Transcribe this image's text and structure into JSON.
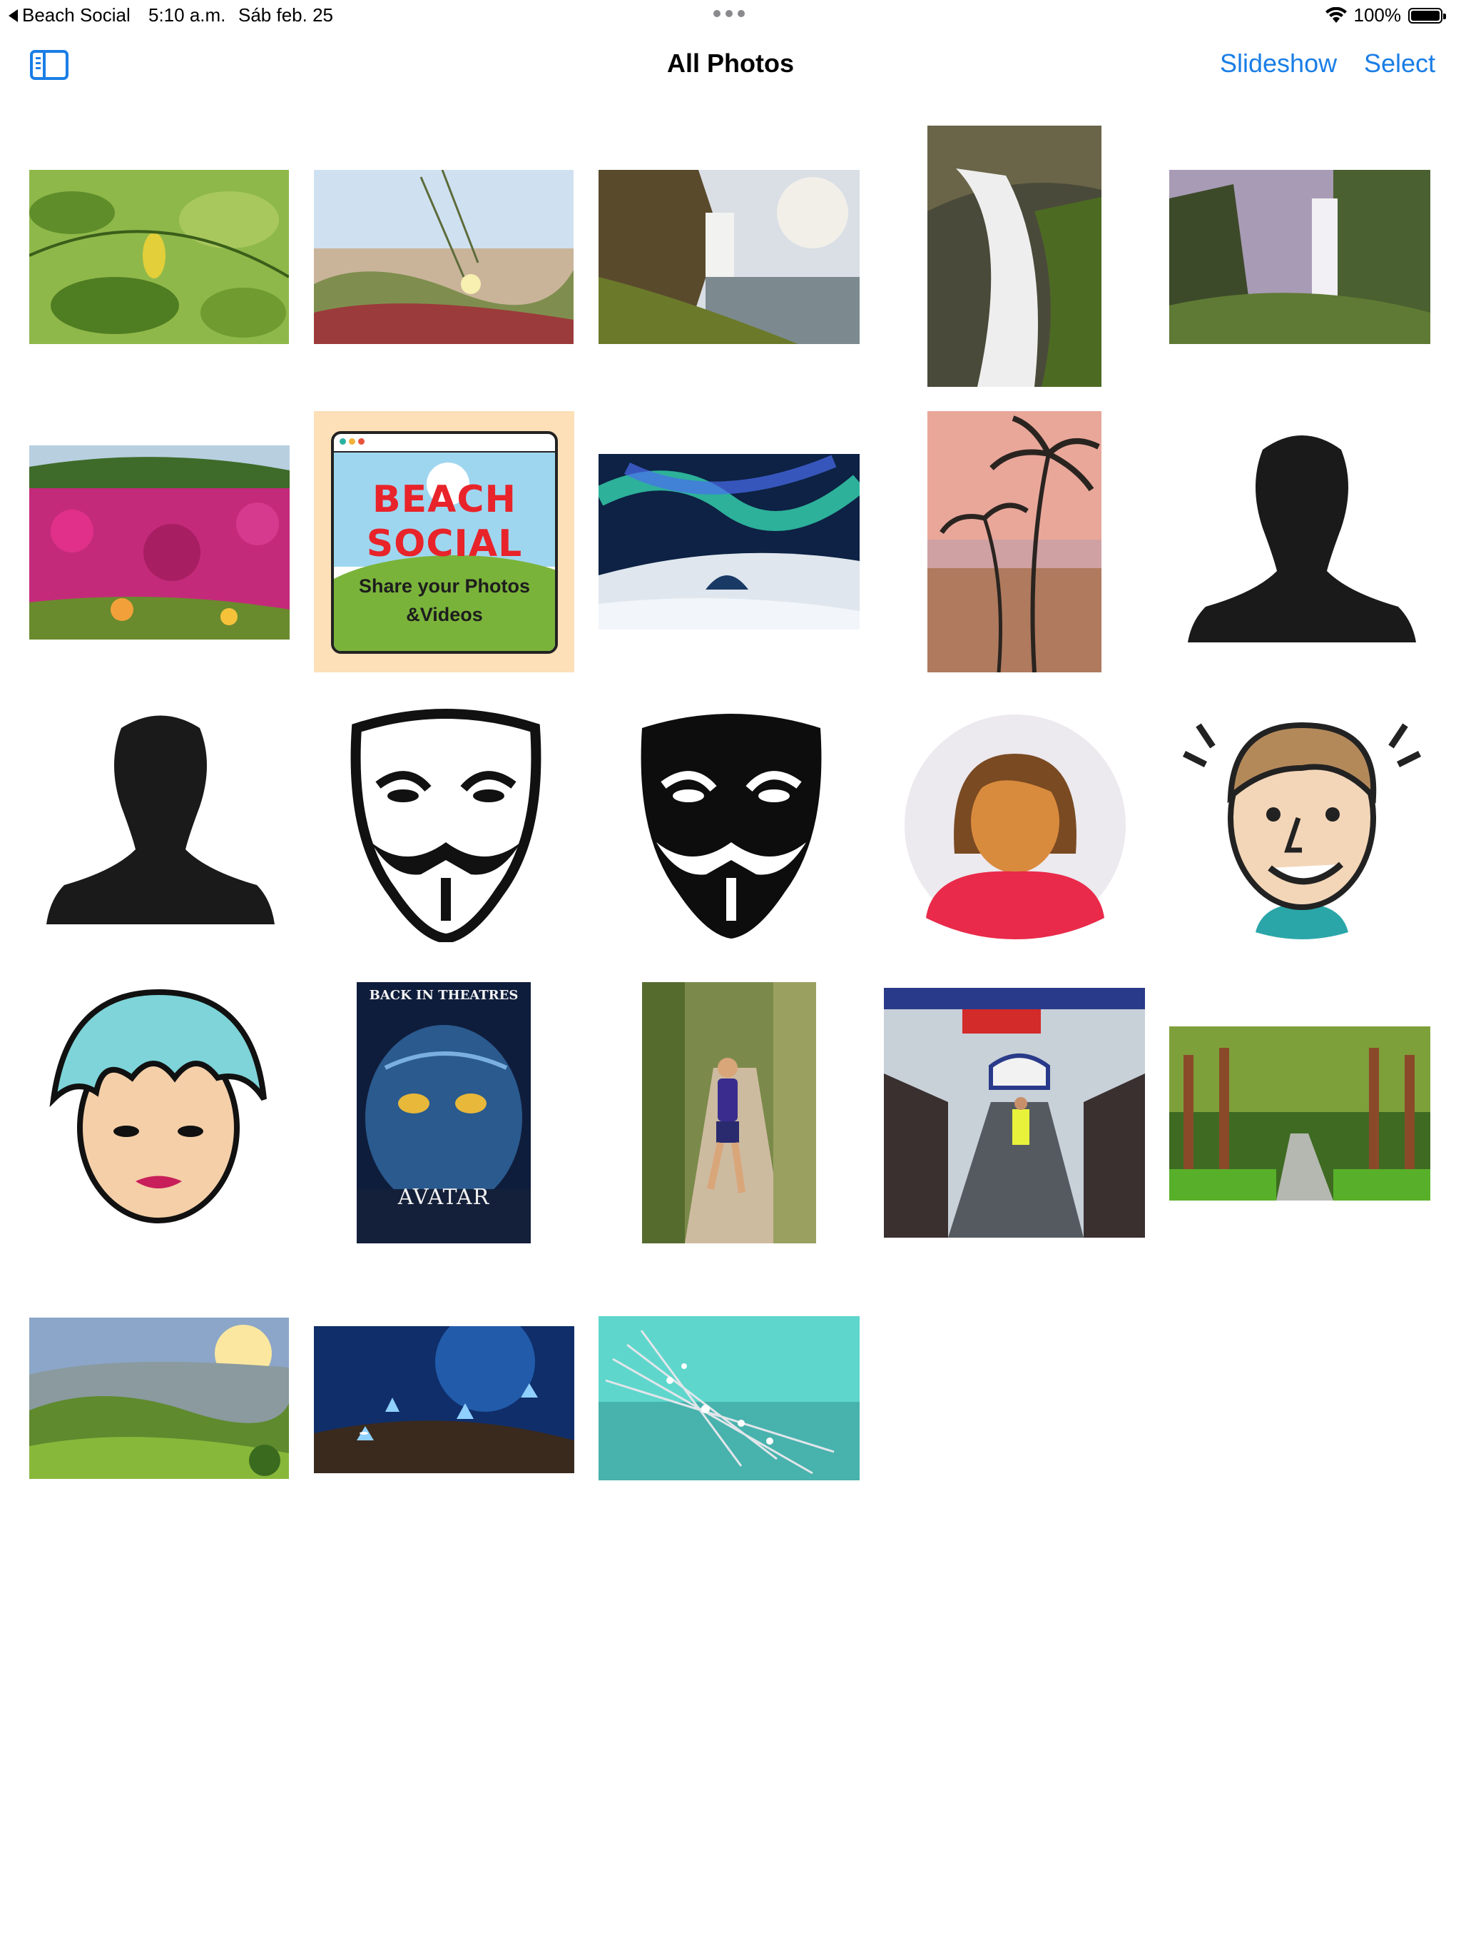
{
  "status_bar": {
    "back_app": "Beach Social",
    "time": "5:10 a.m.",
    "date": "Sáb feb. 25",
    "battery": "100%",
    "battery_level": 1.0
  },
  "nav": {
    "title": "All Photos",
    "slideshow_label": "Slideshow",
    "select_label": "Select"
  },
  "photos": {
    "promo": {
      "line1": "BEACH",
      "line2": "SOCIAL",
      "tagline1": "Share your Photos",
      "tagline2": "&Videos"
    },
    "poster": {
      "top_text": "BACK IN THEATRES",
      "title": "AVATAR"
    }
  },
  "colors": {
    "accent": "#1a7ee6"
  }
}
